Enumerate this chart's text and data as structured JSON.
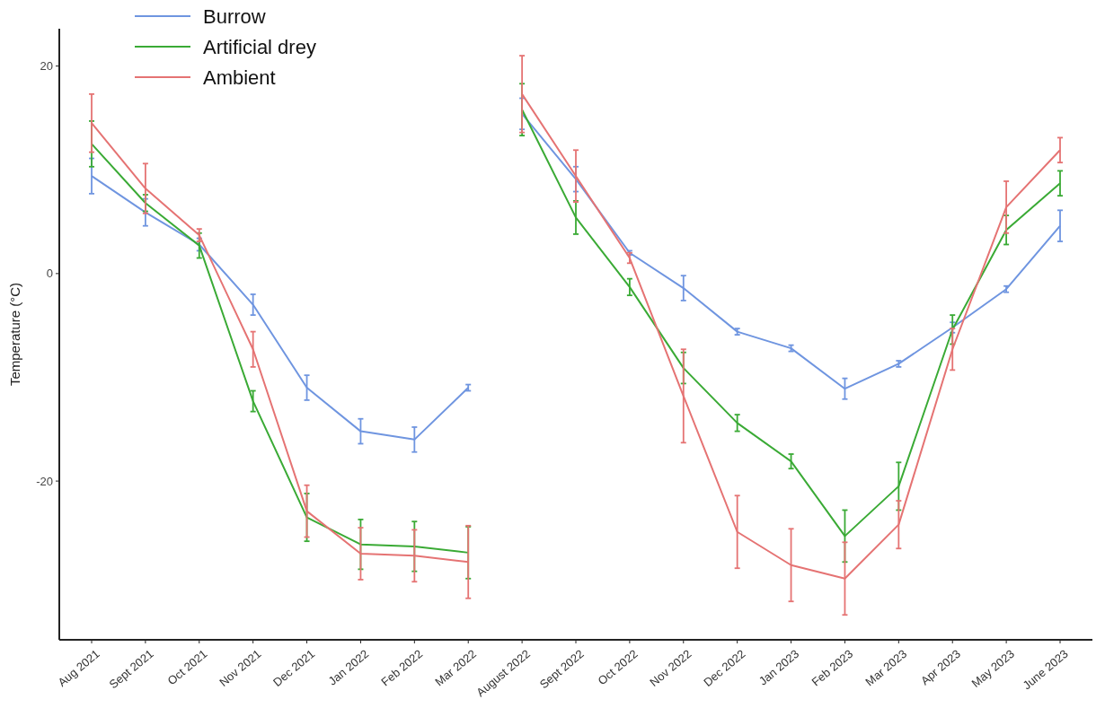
{
  "chart_data": {
    "type": "line",
    "ylabel": "Temperature (°C)",
    "categories": [
      "Aug 2021",
      "Sept 2021",
      "Oct 2021",
      "Nov 2021",
      "Dec 2021",
      "Jan 2022",
      "Feb 2022",
      "Mar 2022",
      "August 2022",
      "Sept 2022",
      "Oct 2022",
      "Nov 2022",
      "Dec 2022",
      "Jan 2023",
      "Feb 2023",
      "Mar 2023",
      "Apr 2023",
      "May 2023",
      "June 2023"
    ],
    "ylim": [
      -35.3,
      23.6
    ],
    "yticks": [
      -20,
      0,
      20
    ],
    "grid": false,
    "legend": "top left",
    "marker": "none",
    "line_style": "solid",
    "series": [
      {
        "name": "Burrow",
        "color": "#6f95e0",
        "values": [
          9.4,
          5.9,
          2.8,
          -3.0,
          -11.0,
          -15.2,
          -16.0,
          -11.0,
          null,
          null,
          null,
          null,
          null,
          null,
          null,
          null,
          null,
          null,
          null
        ],
        "errors": [
          1.7,
          1.3,
          0.6,
          1.0,
          1.2,
          1.2,
          1.2,
          0.3,
          null,
          null,
          null,
          null,
          null,
          null,
          null,
          null,
          null,
          null,
          null
        ]
      },
      {
        "name": "Artificial drey",
        "color": "#3aaa35",
        "values": [
          12.5,
          6.8,
          2.7,
          -12.3,
          -23.5,
          -26.1,
          -26.3,
          -26.9,
          null,
          null,
          null,
          null,
          null,
          null,
          null,
          null,
          null,
          null,
          null
        ],
        "errors": [
          2.2,
          0.8,
          1.2,
          1.0,
          2.3,
          2.4,
          2.4,
          2.5,
          null,
          null,
          null,
          null,
          null,
          null,
          null,
          null,
          null,
          null,
          null
        ]
      },
      {
        "name": "Ambient",
        "color": "#e57373",
        "values": [
          14.5,
          8.2,
          3.7,
          -7.3,
          -22.9,
          -27.0,
          -27.2,
          -27.8,
          null,
          null,
          null,
          null,
          null,
          null,
          null,
          null,
          null,
          null,
          null
        ],
        "errors": [
          2.8,
          2.4,
          0.6,
          1.7,
          2.5,
          2.5,
          2.5,
          3.5,
          null,
          null,
          null,
          null,
          null,
          null,
          null,
          null,
          null,
          null,
          null
        ]
      },
      {
        "color": "#6f95e0",
        "values": [
          null,
          null,
          null,
          null,
          null,
          null,
          null,
          null,
          15.4,
          9.1,
          2.0,
          -1.4,
          -5.6,
          -7.2,
          -11.1,
          -8.7,
          -5.2,
          -1.5,
          4.6
        ],
        "errors": [
          null,
          null,
          null,
          null,
          null,
          null,
          null,
          null,
          1.5,
          1.2,
          0.2,
          1.2,
          0.3,
          0.3,
          1.0,
          0.3,
          0.5,
          0.3,
          1.5
        ]
      },
      {
        "color": "#3aaa35",
        "values": [
          null,
          null,
          null,
          null,
          null,
          null,
          null,
          null,
          15.8,
          5.4,
          -1.3,
          -9.1,
          -14.4,
          -18.1,
          -25.3,
          -20.5,
          -5.4,
          4.2,
          8.7
        ],
        "errors": [
          null,
          null,
          null,
          null,
          null,
          null,
          null,
          null,
          2.5,
          1.6,
          0.8,
          1.5,
          0.8,
          0.7,
          2.5,
          2.3,
          1.4,
          1.4,
          1.2
        ]
      },
      {
        "color": "#e57373",
        "values": [
          null,
          null,
          null,
          null,
          null,
          null,
          null,
          null,
          17.3,
          9.4,
          1.5,
          -11.8,
          -24.9,
          -28.1,
          -29.4,
          -24.2,
          -7.3,
          6.4,
          11.9
        ],
        "errors": [
          null,
          null,
          null,
          null,
          null,
          null,
          null,
          null,
          3.7,
          2.5,
          0.5,
          4.5,
          3.5,
          3.5,
          3.5,
          2.3,
          2.0,
          2.5,
          1.2
        ]
      }
    ]
  }
}
